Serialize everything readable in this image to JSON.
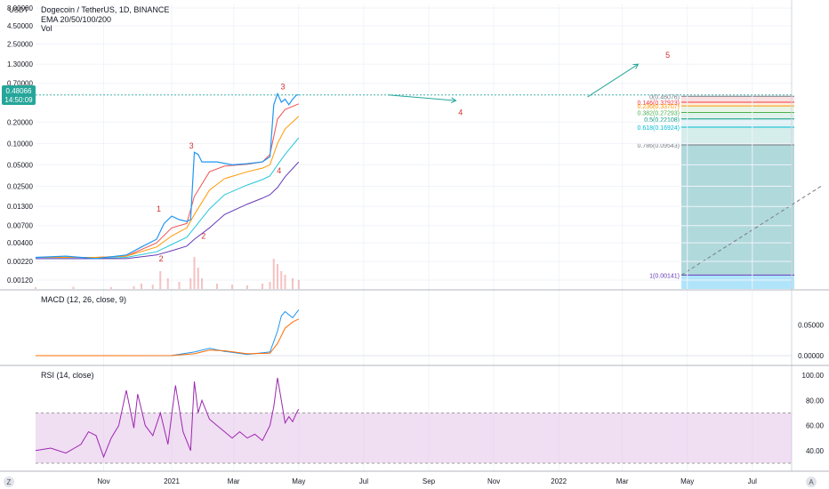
{
  "header": {
    "currency": "USDT",
    "title": "Dogecoin / TetherUS, 1D, BINANCE",
    "ema_label": "EMA 20/50/100/200",
    "vol_label": "Vol"
  },
  "price_badge": {
    "value": "0.48066",
    "countdown": "14:50:09"
  },
  "price_axis": {
    "ticks": [
      {
        "label": "8.00000",
        "v": 8.0
      },
      {
        "label": "4.50000",
        "v": 4.5
      },
      {
        "label": "2.50000",
        "v": 2.5
      },
      {
        "label": "1.30000",
        "v": 1.3
      },
      {
        "label": "0.70000",
        "v": 0.7
      },
      {
        "label": "0.20000",
        "v": 0.2
      },
      {
        "label": "0.10000",
        "v": 0.1
      },
      {
        "label": "0.05000",
        "v": 0.05
      },
      {
        "label": "0.02500",
        "v": 0.025
      },
      {
        "label": "0.01300",
        "v": 0.013
      },
      {
        "label": "0.00700",
        "v": 0.007
      },
      {
        "label": "0.00400",
        "v": 0.004
      },
      {
        "label": "0.00220",
        "v": 0.0022
      },
      {
        "label": "0.00120",
        "v": 0.0012
      }
    ]
  },
  "time_axis": {
    "labels": [
      {
        "label": "Nov",
        "t": 0.09
      },
      {
        "label": "2021",
        "t": 0.18
      },
      {
        "label": "Mar",
        "t": 0.262
      },
      {
        "label": "May",
        "t": 0.348
      },
      {
        "label": "Jul",
        "t": 0.434
      },
      {
        "label": "Sep",
        "t": 0.52
      },
      {
        "label": "Nov",
        "t": 0.606
      },
      {
        "label": "2022",
        "t": 0.692
      },
      {
        "label": "Mar",
        "t": 0.776
      },
      {
        "label": "May",
        "t": 0.862
      },
      {
        "label": "Jul",
        "t": 0.948
      }
    ]
  },
  "chart_data": {
    "type": "line",
    "scale": "log",
    "grid": true,
    "series": [
      {
        "values": [
          [
            0.0,
            0.0025
          ],
          [
            0.04,
            0.0026
          ],
          [
            0.08,
            0.0024
          ],
          [
            0.12,
            0.0027
          ],
          [
            0.14,
            0.0035
          ],
          [
            0.16,
            0.0045
          ],
          [
            0.17,
            0.0075
          ],
          [
            0.18,
            0.0095
          ],
          [
            0.19,
            0.0085
          ],
          [
            0.2,
            0.008
          ],
          [
            0.205,
            0.0085
          ],
          [
            0.21,
            0.075
          ],
          [
            0.215,
            0.07
          ],
          [
            0.22,
            0.055
          ],
          [
            0.24,
            0.055
          ],
          [
            0.26,
            0.05
          ],
          [
            0.28,
            0.052
          ],
          [
            0.3,
            0.055
          ],
          [
            0.31,
            0.065
          ],
          [
            0.315,
            0.35
          ],
          [
            0.32,
            0.5
          ],
          [
            0.325,
            0.38
          ],
          [
            0.33,
            0.42
          ],
          [
            0.335,
            0.35
          ],
          [
            0.34,
            0.42
          ],
          [
            0.345,
            0.48
          ],
          [
            0.348,
            0.48066
          ]
        ]
      },
      {
        "values": [
          [
            0.0,
            0.0025
          ],
          [
            0.08,
            0.0025
          ],
          [
            0.12,
            0.0026
          ],
          [
            0.16,
            0.004
          ],
          [
            0.18,
            0.0065
          ],
          [
            0.2,
            0.0075
          ],
          [
            0.21,
            0.018
          ],
          [
            0.23,
            0.04
          ],
          [
            0.25,
            0.048
          ],
          [
            0.28,
            0.051
          ],
          [
            0.3,
            0.055
          ],
          [
            0.31,
            0.07
          ],
          [
            0.32,
            0.22
          ],
          [
            0.33,
            0.3
          ],
          [
            0.348,
            0.36
          ]
        ]
      },
      {
        "values": [
          [
            0.0,
            0.0025
          ],
          [
            0.08,
            0.0025
          ],
          [
            0.12,
            0.0026
          ],
          [
            0.16,
            0.0035
          ],
          [
            0.18,
            0.005
          ],
          [
            0.2,
            0.0065
          ],
          [
            0.21,
            0.01
          ],
          [
            0.23,
            0.022
          ],
          [
            0.25,
            0.032
          ],
          [
            0.28,
            0.04
          ],
          [
            0.3,
            0.045
          ],
          [
            0.31,
            0.05
          ],
          [
            0.32,
            0.1
          ],
          [
            0.33,
            0.16
          ],
          [
            0.348,
            0.24
          ]
        ]
      },
      {
        "values": [
          [
            0.0,
            0.0024
          ],
          [
            0.08,
            0.0024
          ],
          [
            0.12,
            0.0025
          ],
          [
            0.16,
            0.003
          ],
          [
            0.18,
            0.0038
          ],
          [
            0.2,
            0.0048
          ],
          [
            0.21,
            0.0065
          ],
          [
            0.23,
            0.012
          ],
          [
            0.25,
            0.019
          ],
          [
            0.28,
            0.026
          ],
          [
            0.3,
            0.031
          ],
          [
            0.31,
            0.035
          ],
          [
            0.32,
            0.05
          ],
          [
            0.33,
            0.07
          ],
          [
            0.348,
            0.12
          ]
        ]
      },
      {
        "values": [
          [
            0.0,
            0.0024
          ],
          [
            0.08,
            0.0024
          ],
          [
            0.12,
            0.0024
          ],
          [
            0.16,
            0.0027
          ],
          [
            0.18,
            0.0031
          ],
          [
            0.2,
            0.0036
          ],
          [
            0.21,
            0.0045
          ],
          [
            0.23,
            0.0065
          ],
          [
            0.25,
            0.01
          ],
          [
            0.28,
            0.014
          ],
          [
            0.3,
            0.017
          ],
          [
            0.31,
            0.019
          ],
          [
            0.32,
            0.024
          ],
          [
            0.33,
            0.034
          ],
          [
            0.348,
            0.055
          ]
        ]
      }
    ],
    "volume": [
      [
        0.0,
        0.05
      ],
      [
        0.05,
        0.06
      ],
      [
        0.1,
        0.05
      ],
      [
        0.13,
        0.08
      ],
      [
        0.14,
        0.15
      ],
      [
        0.155,
        0.12
      ],
      [
        0.165,
        0.5
      ],
      [
        0.175,
        0.3
      ],
      [
        0.19,
        0.2
      ],
      [
        0.205,
        0.3
      ],
      [
        0.21,
        0.9
      ],
      [
        0.215,
        0.6
      ],
      [
        0.22,
        0.3
      ],
      [
        0.24,
        0.15
      ],
      [
        0.26,
        0.12
      ],
      [
        0.28,
        0.1
      ],
      [
        0.3,
        0.15
      ],
      [
        0.31,
        0.2
      ],
      [
        0.315,
        0.85
      ],
      [
        0.32,
        0.7
      ],
      [
        0.325,
        0.5
      ],
      [
        0.33,
        0.4
      ],
      [
        0.34,
        0.3
      ],
      [
        0.348,
        0.25
      ]
    ],
    "wave_labels": [
      {
        "label": "1",
        "t": 0.163,
        "v": 0.011
      },
      {
        "label": "2",
        "t": 0.166,
        "v": 0.0022
      },
      {
        "label": "3",
        "t": 0.206,
        "v": 0.085
      },
      {
        "label": "2",
        "t": 0.222,
        "v": 0.0046
      },
      {
        "label": "4",
        "t": 0.322,
        "v": 0.038
      },
      {
        "label": "3",
        "t": 0.327,
        "v": 0.58
      },
      {
        "label": "4",
        "t": 0.562,
        "v": 0.25
      },
      {
        "label": "5",
        "t": 0.836,
        "v": 1.6
      }
    ],
    "fib_levels": [
      {
        "ratio": "0",
        "label": "0(0.46076)",
        "v": 0.46076
      },
      {
        "ratio": "0.146",
        "label": "0.146(0.37923)",
        "v": 0.37923
      },
      {
        "ratio": "0.236",
        "label": "0.236(0.33707)",
        "v": 0.33707
      },
      {
        "ratio": "0.382",
        "label": "0.382(0.27293)",
        "v": 0.27293
      },
      {
        "ratio": "0.5",
        "label": "0.5(0.22108)",
        "v": 0.22108
      },
      {
        "ratio": "0.618",
        "label": "0.618(0.16924)",
        "v": 0.16924
      },
      {
        "ratio": "0.786",
        "label": "0.786(0.09543)",
        "v": 0.09543
      },
      {
        "ratio": "1",
        "label": "1(0.00141)",
        "v": 0.00141
      }
    ],
    "forecast": [
      [
        0.348,
        0.48066
      ],
      [
        0.466,
        0.48066
      ],
      [
        0.556,
        0.4
      ],
      [
        0.73,
        0.45
      ],
      [
        0.797,
        1.3
      ]
    ],
    "macd": {
      "title": "MACD (12, 26, close, 9)",
      "ticks": [
        {
          "label": "0.05000",
          "v": 0.05
        },
        {
          "label": "0.00000",
          "v": 0.0
        }
      ],
      "macd": [
        [
          0.0,
          0.0
        ],
        [
          0.18,
          0.0002
        ],
        [
          0.21,
          0.006
        ],
        [
          0.23,
          0.012
        ],
        [
          0.25,
          0.007
        ],
        [
          0.28,
          0.002
        ],
        [
          0.31,
          0.006
        ],
        [
          0.32,
          0.04
        ],
        [
          0.325,
          0.065
        ],
        [
          0.33,
          0.072
        ],
        [
          0.34,
          0.062
        ],
        [
          0.348,
          0.075
        ]
      ],
      "signal": [
        [
          0.0,
          0.0
        ],
        [
          0.18,
          0.0001
        ],
        [
          0.21,
          0.003
        ],
        [
          0.23,
          0.009
        ],
        [
          0.25,
          0.008
        ],
        [
          0.28,
          0.003
        ],
        [
          0.31,
          0.004
        ],
        [
          0.32,
          0.02
        ],
        [
          0.33,
          0.045
        ],
        [
          0.34,
          0.055
        ],
        [
          0.348,
          0.06
        ]
      ]
    },
    "rsi": {
      "title": "RSI (14, close)",
      "ticks": [
        {
          "label": "100.00",
          "v": 100
        },
        {
          "label": "80.00",
          "v": 80
        },
        {
          "label": "60.00",
          "v": 60
        },
        {
          "label": "40.00",
          "v": 40
        }
      ],
      "bands": [
        70,
        30
      ],
      "values": [
        [
          0.0,
          40
        ],
        [
          0.02,
          42
        ],
        [
          0.04,
          38
        ],
        [
          0.06,
          45
        ],
        [
          0.07,
          55
        ],
        [
          0.08,
          52
        ],
        [
          0.09,
          35
        ],
        [
          0.1,
          50
        ],
        [
          0.11,
          60
        ],
        [
          0.12,
          88
        ],
        [
          0.13,
          58
        ],
        [
          0.135,
          85
        ],
        [
          0.145,
          60
        ],
        [
          0.155,
          52
        ],
        [
          0.165,
          70
        ],
        [
          0.175,
          45
        ],
        [
          0.185,
          92
        ],
        [
          0.195,
          55
        ],
        [
          0.205,
          40
        ],
        [
          0.21,
          95
        ],
        [
          0.215,
          70
        ],
        [
          0.22,
          80
        ],
        [
          0.23,
          65
        ],
        [
          0.24,
          60
        ],
        [
          0.25,
          55
        ],
        [
          0.26,
          50
        ],
        [
          0.27,
          55
        ],
        [
          0.28,
          50
        ],
        [
          0.29,
          53
        ],
        [
          0.3,
          48
        ],
        [
          0.31,
          60
        ],
        [
          0.315,
          75
        ],
        [
          0.32,
          98
        ],
        [
          0.325,
          80
        ],
        [
          0.33,
          62
        ],
        [
          0.335,
          67
        ],
        [
          0.34,
          63
        ],
        [
          0.345,
          70
        ],
        [
          0.348,
          73
        ]
      ]
    }
  },
  "colors": {
    "price": "#2196f3",
    "ema20": "#ef5350",
    "ema50": "#ff9800",
    "ema100": "#26c6da",
    "ema200": "#673ab7",
    "volume": "#ef9a9a",
    "macd": "#2196f3",
    "signal": "#ff6d00",
    "rsi": "#9c27b0",
    "wave": "#d32f2f",
    "arrow": "#26a69a"
  },
  "corner": {
    "left": "Z",
    "right": "A"
  }
}
